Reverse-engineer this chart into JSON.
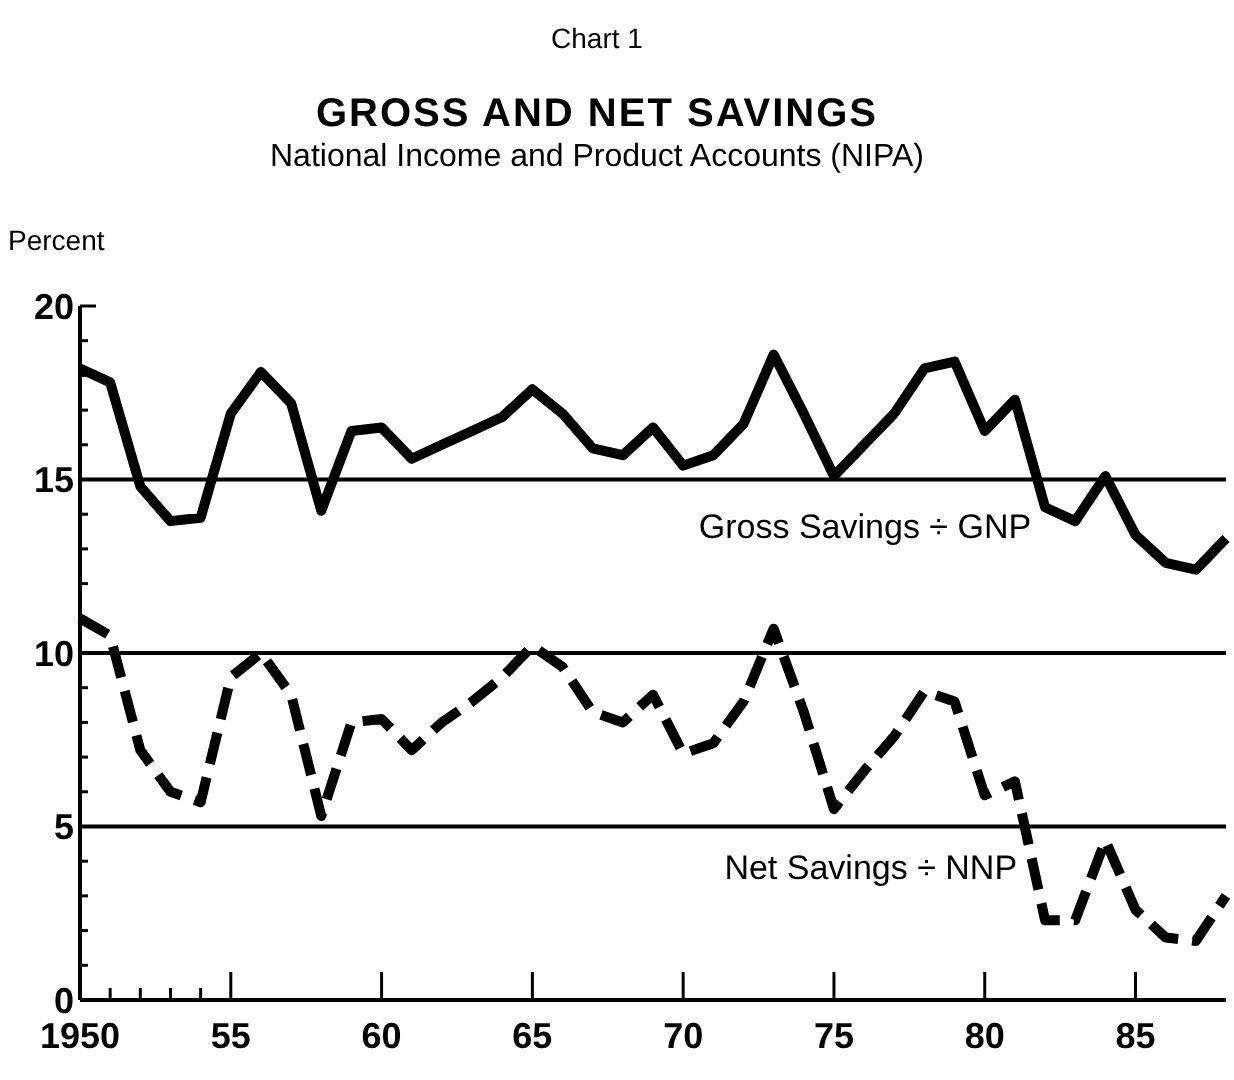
{
  "chart_data": {
    "type": "line",
    "title": "GROSS AND NET SAVINGS",
    "subtitle": "National Income and Product Accounts (NIPA)",
    "annotations": [
      "Chart 1"
    ],
    "ylabel": "Percent",
    "x": [
      1950,
      1951,
      1952,
      1953,
      1954,
      1955,
      1956,
      1957,
      1958,
      1959,
      1960,
      1961,
      1962,
      1963,
      1964,
      1965,
      1966,
      1967,
      1968,
      1969,
      1970,
      1971,
      1972,
      1973,
      1974,
      1975,
      1976,
      1977,
      1978,
      1979,
      1980,
      1981,
      1982,
      1983,
      1984,
      1985,
      1986,
      1987,
      1988
    ],
    "series": [
      {
        "name": "Gross Savings ÷ GNP",
        "color": "#000000",
        "line_style": "solid",
        "values": [
          18.2,
          17.8,
          14.8,
          13.8,
          13.9,
          16.9,
          18.1,
          17.2,
          14.1,
          16.4,
          16.5,
          15.6,
          16.0,
          16.4,
          16.8,
          17.6,
          16.9,
          15.9,
          15.7,
          16.5,
          15.4,
          15.7,
          16.6,
          18.6,
          16.9,
          15.1,
          16.0,
          16.9,
          18.2,
          18.4,
          16.4,
          17.3,
          14.2,
          13.8,
          15.1,
          13.4,
          12.6,
          12.4,
          13.3
        ]
      },
      {
        "name": "Net Savings ÷ NNP",
        "color": "#000000",
        "line_style": "dashed",
        "values": [
          11.0,
          10.5,
          7.2,
          6.0,
          5.7,
          9.3,
          10.0,
          8.8,
          5.3,
          8.0,
          8.1,
          7.2,
          8.0,
          8.6,
          9.3,
          10.2,
          9.6,
          8.3,
          8.0,
          8.8,
          7.1,
          7.4,
          8.6,
          10.7,
          8.3,
          5.5,
          6.6,
          7.6,
          8.9,
          8.6,
          5.9,
          6.3,
          2.3,
          2.3,
          4.6,
          2.6,
          1.8,
          1.7,
          3.0
        ]
      }
    ],
    "xlim": [
      1950,
      1988
    ],
    "xticks": [
      {
        "value": 1950,
        "label": "1950"
      },
      {
        "value": 1951,
        "label": null
      },
      {
        "value": 1952,
        "label": null
      },
      {
        "value": 1953,
        "label": null
      },
      {
        "value": 1954,
        "label": null
      },
      {
        "value": 1955,
        "label": "55"
      },
      {
        "value": 1960,
        "label": "60"
      },
      {
        "value": 1965,
        "label": "65"
      },
      {
        "value": 1970,
        "label": "70"
      },
      {
        "value": 1975,
        "label": "75"
      },
      {
        "value": 1980,
        "label": "80"
      },
      {
        "value": 1985,
        "label": "85"
      }
    ],
    "ylim": [
      0,
      20
    ],
    "yticks": [
      0,
      {
        "value": 1,
        "label": null
      },
      {
        "value": 2,
        "label": null
      },
      {
        "value": 3,
        "label": null
      },
      {
        "value": 4,
        "label": null
      },
      5,
      {
        "value": 6,
        "label": null
      },
      {
        "value": 7,
        "label": null
      },
      {
        "value": 8,
        "label": null
      },
      {
        "value": 9,
        "label": null
      },
      10,
      {
        "value": 11,
        "label": null
      },
      {
        "value": 12,
        "label": null
      },
      {
        "value": 13,
        "label": null
      },
      {
        "value": 14,
        "label": null
      },
      15,
      {
        "value": 16,
        "label": null
      },
      {
        "value": 17,
        "label": null
      },
      {
        "value": 18,
        "label": null
      },
      {
        "value": 19,
        "label": null
      },
      20
    ],
    "grid": "y",
    "marker": "none"
  }
}
